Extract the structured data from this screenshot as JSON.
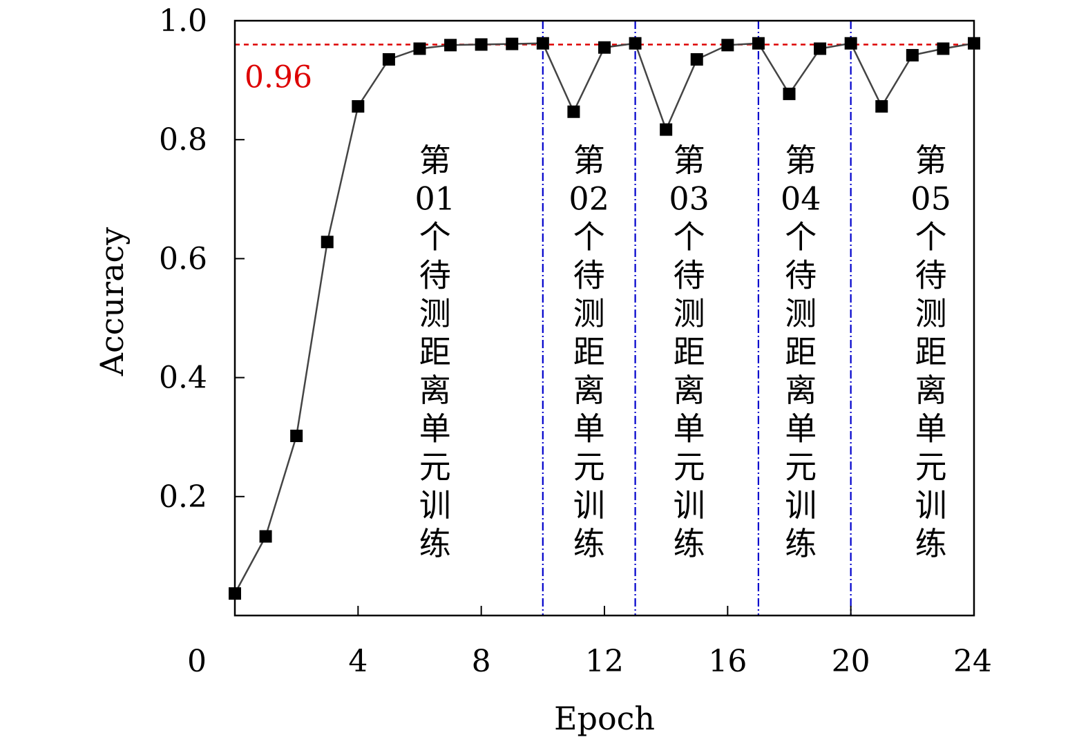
{
  "chart_data": {
    "type": "line",
    "title": "",
    "xlabel": "Epoch",
    "ylabel": "Accuracy",
    "xlim": [
      0,
      24
    ],
    "ylim": [
      0,
      1.0
    ],
    "x_ticks": [
      "0",
      "4",
      "8",
      "12",
      "16",
      "20",
      "24"
    ],
    "y_ticks": [
      "0.2",
      "0.4",
      "0.6",
      "0.8",
      "1.0"
    ],
    "x": [
      0,
      1,
      2,
      3,
      4,
      5,
      6,
      7,
      8,
      9,
      10,
      11,
      12,
      13,
      14,
      15,
      16,
      17,
      18,
      19,
      20,
      21,
      22,
      23,
      24
    ],
    "series": [
      {
        "values": [
          0.037,
          0.133,
          0.302,
          0.628,
          0.856,
          0.935,
          0.953,
          0.959,
          0.96,
          0.961,
          0.962,
          0.847,
          0.955,
          0.962,
          0.817,
          0.935,
          0.959,
          0.962,
          0.877,
          0.953,
          0.962,
          0.856,
          0.942,
          0.953,
          0.962
        ],
        "color": "#444444",
        "marker": "square"
      }
    ],
    "reference_line": {
      "y": 0.96,
      "label": "0.96",
      "color": "#dd0000",
      "style": "dashed"
    },
    "vertical_lines": {
      "x": [
        10,
        13,
        17,
        20
      ],
      "color": "#0000cc",
      "style": "dash-dot"
    },
    "segment_labels": [
      {
        "x": 6.5,
        "text": "第01个待测距离单元训练"
      },
      {
        "x": 11.5,
        "text": "第02个待测距离单元训练"
      },
      {
        "x": 14.75,
        "text": "第03个待测距离单元训练"
      },
      {
        "x": 18.375,
        "text": "第04个待测距离单元训练"
      },
      {
        "x": 22.6,
        "text": "第05个待测距离单元训练"
      }
    ],
    "grid": false,
    "legend": "none"
  }
}
